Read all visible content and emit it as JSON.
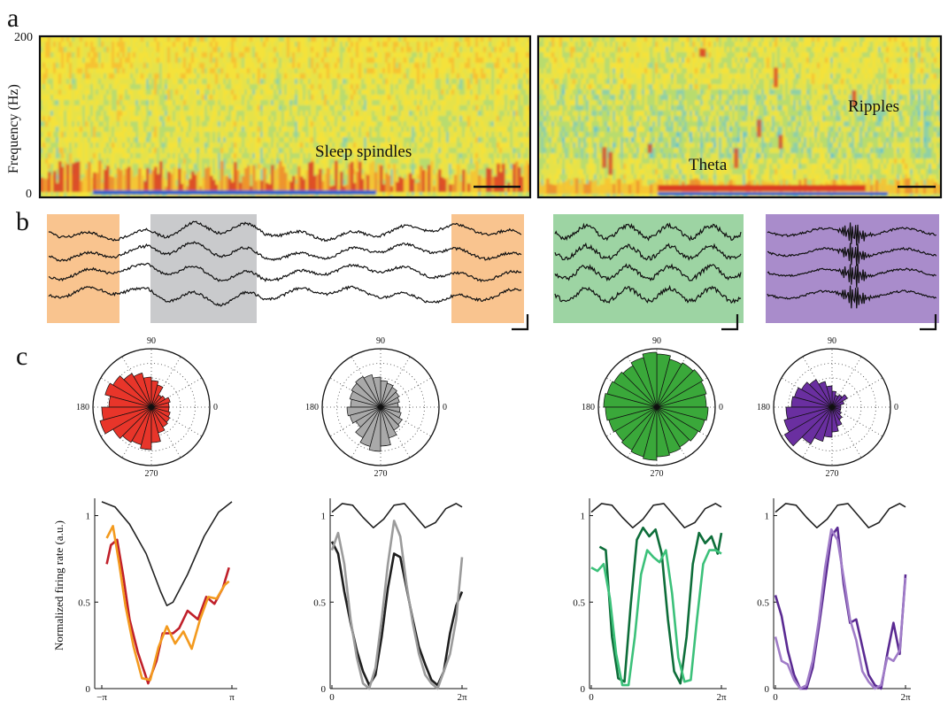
{
  "panel_letters": {
    "a": "a",
    "b": "b",
    "c": "c"
  },
  "spectrogram": {
    "ylabel": "Frequency (Hz)",
    "ytick_top": "200",
    "ytick_bottom": "0",
    "label_spindles": "Sleep spindles",
    "label_theta": "Theta",
    "label_ripples": "Ripples"
  },
  "polar": {
    "labels": {
      "top": "90",
      "left": "180",
      "right": "0",
      "bottom": "270"
    },
    "colors": [
      "#e8352a",
      "#a9a9a9",
      "#3aa83a",
      "#6a2fa0"
    ]
  },
  "trace_colors": {
    "spindle": "#f9c48f",
    "gray": "#c9cacc",
    "theta": "#9dd4a3",
    "ripple": "#a98ccb"
  },
  "chart_data": [
    {
      "type": "line",
      "ylabel": "Normalized firing rate (a.u.)",
      "xticks": [
        "−π",
        "π"
      ],
      "yticks": [
        "0",
        "0.5",
        "1"
      ],
      "ylim": [
        0,
        1.1
      ],
      "series": [
        {
          "color": "#222222",
          "x": [
            -3.14,
            -2.5,
            -1.8,
            -1.0,
            -0.3,
            0,
            0.3,
            1.0,
            1.8,
            2.5,
            3.14
          ],
          "values": [
            1.08,
            1.05,
            0.95,
            0.78,
            0.56,
            0.48,
            0.5,
            0.66,
            0.88,
            1.02,
            1.08
          ]
        },
        {
          "color": "#c0202a",
          "x": [
            -2.9,
            -2.7,
            -2.4,
            -2.1,
            -1.8,
            -1.4,
            -0.9,
            -0.5,
            -0.2,
            0.3,
            0.6,
            1.0,
            1.5,
            1.9,
            2.3,
            2.7,
            3.0
          ],
          "values": [
            0.72,
            0.83,
            0.86,
            0.65,
            0.4,
            0.21,
            0.03,
            0.16,
            0.32,
            0.32,
            0.35,
            0.45,
            0.4,
            0.53,
            0.49,
            0.58,
            0.7
          ]
        },
        {
          "color": "#f39a1e",
          "x": [
            -2.9,
            -2.6,
            -2.3,
            -2.0,
            -1.6,
            -1.2,
            -0.8,
            -0.4,
            0,
            0.4,
            0.8,
            1.2,
            1.6,
            2.0,
            2.4,
            2.8,
            3.0
          ],
          "values": [
            0.87,
            0.94,
            0.72,
            0.48,
            0.24,
            0.06,
            0.05,
            0.24,
            0.36,
            0.26,
            0.33,
            0.23,
            0.4,
            0.53,
            0.52,
            0.6,
            0.62
          ]
        }
      ]
    },
    {
      "type": "line",
      "xticks": [
        "0",
        "2π"
      ],
      "yticks": [
        "0",
        "0.5",
        "1"
      ],
      "ylim": [
        0,
        1.1
      ],
      "series": [
        {
          "color": "#222222",
          "x": [
            0,
            0.5,
            1.0,
            1.5,
            2.0,
            2.5,
            3.0,
            3.5,
            4.0,
            4.5,
            5.0,
            5.5,
            6.0,
            6.28
          ],
          "values": [
            1.02,
            1.07,
            1.06,
            0.99,
            0.93,
            0.98,
            1.06,
            1.07,
            1.0,
            0.93,
            0.96,
            1.04,
            1.07,
            1.05
          ]
        },
        {
          "color": "#1e1e1e",
          "x": [
            0,
            0.3,
            0.6,
            0.9,
            1.2,
            1.5,
            1.8,
            2.1,
            2.4,
            2.7,
            3.0,
            3.3,
            3.6,
            3.9,
            4.2,
            4.5,
            4.8,
            5.1,
            5.4,
            5.7,
            6.0,
            6.28
          ],
          "values": [
            0.85,
            0.78,
            0.56,
            0.38,
            0.22,
            0.1,
            0.02,
            0.08,
            0.3,
            0.58,
            0.78,
            0.76,
            0.58,
            0.4,
            0.24,
            0.14,
            0.05,
            0.02,
            0.1,
            0.32,
            0.48,
            0.56
          ]
        },
        {
          "color": "#9b9b9b",
          "x": [
            0,
            0.3,
            0.6,
            0.9,
            1.2,
            1.5,
            1.8,
            2.1,
            2.4,
            2.7,
            3.0,
            3.3,
            3.6,
            3.9,
            4.2,
            4.5,
            4.8,
            5.1,
            5.4,
            5.7,
            6.0,
            6.28
          ],
          "values": [
            0.8,
            0.9,
            0.72,
            0.4,
            0.18,
            0.03,
            0.0,
            0.12,
            0.4,
            0.72,
            0.97,
            0.88,
            0.6,
            0.38,
            0.2,
            0.08,
            0.03,
            0.0,
            0.1,
            0.2,
            0.4,
            0.76
          ]
        }
      ]
    },
    {
      "type": "line",
      "xticks": [
        "0",
        "2π"
      ],
      "yticks": [
        "0",
        "0.5",
        "1"
      ],
      "ylim": [
        0,
        1.1
      ],
      "series": [
        {
          "color": "#222222",
          "x": [
            0,
            0.5,
            1.0,
            1.5,
            2.0,
            2.5,
            3.0,
            3.5,
            4.0,
            4.5,
            5.0,
            5.5,
            6.0,
            6.28
          ],
          "values": [
            1.02,
            1.07,
            1.06,
            0.99,
            0.93,
            0.98,
            1.06,
            1.07,
            1.0,
            0.93,
            0.96,
            1.04,
            1.07,
            1.05
          ]
        },
        {
          "color": "#0e6e3a",
          "x": [
            0.4,
            0.7,
            1.0,
            1.3,
            1.6,
            1.9,
            2.2,
            2.5,
            2.8,
            3.1,
            3.4,
            3.7,
            4.0,
            4.3,
            4.6,
            4.9,
            5.2,
            5.5,
            5.8,
            6.1,
            6.28
          ],
          "values": [
            0.82,
            0.8,
            0.3,
            0.06,
            0.04,
            0.48,
            0.86,
            0.93,
            0.88,
            0.92,
            0.78,
            0.4,
            0.1,
            0.03,
            0.3,
            0.72,
            0.9,
            0.84,
            0.88,
            0.78,
            0.9
          ]
        },
        {
          "color": "#3cc17a",
          "x": [
            0,
            0.3,
            0.6,
            0.9,
            1.2,
            1.5,
            1.8,
            2.1,
            2.4,
            2.7,
            3.0,
            3.3,
            3.6,
            3.9,
            4.2,
            4.5,
            4.8,
            5.1,
            5.4,
            5.7,
            6.0,
            6.28
          ],
          "values": [
            0.7,
            0.68,
            0.72,
            0.52,
            0.2,
            0.02,
            0.02,
            0.3,
            0.66,
            0.8,
            0.76,
            0.73,
            0.8,
            0.55,
            0.18,
            0.04,
            0.05,
            0.4,
            0.72,
            0.8,
            0.8,
            0.78
          ]
        }
      ]
    },
    {
      "type": "line",
      "xticks": [
        "0",
        "2π"
      ],
      "yticks": [
        "0",
        "0.5",
        "1"
      ],
      "ylim": [
        0,
        1.1
      ],
      "series": [
        {
          "color": "#222222",
          "x": [
            0,
            0.5,
            1.0,
            1.5,
            2.0,
            2.5,
            3.0,
            3.5,
            4.0,
            4.5,
            5.0,
            5.5,
            6.0,
            6.28
          ],
          "values": [
            1.02,
            1.07,
            1.06,
            0.99,
            0.93,
            0.98,
            1.06,
            1.07,
            1.0,
            0.93,
            0.96,
            1.04,
            1.07,
            1.05
          ]
        },
        {
          "color": "#5a2a92",
          "x": [
            0,
            0.3,
            0.6,
            0.9,
            1.2,
            1.5,
            1.8,
            2.1,
            2.4,
            2.7,
            3.0,
            3.3,
            3.6,
            3.9,
            4.2,
            4.5,
            4.8,
            5.1,
            5.4,
            5.7,
            6.0,
            6.28
          ],
          "values": [
            0.54,
            0.42,
            0.22,
            0.08,
            0.0,
            0.0,
            0.12,
            0.36,
            0.62,
            0.88,
            0.93,
            0.6,
            0.38,
            0.4,
            0.24,
            0.08,
            0.02,
            0.0,
            0.2,
            0.38,
            0.2,
            0.66
          ]
        },
        {
          "color": "#a07cc8",
          "x": [
            0,
            0.3,
            0.6,
            0.9,
            1.2,
            1.5,
            1.8,
            2.1,
            2.4,
            2.7,
            3.0,
            3.3,
            3.6,
            3.9,
            4.2,
            4.5,
            4.8,
            5.1,
            5.4,
            5.7,
            6.0,
            6.28
          ],
          "values": [
            0.3,
            0.16,
            0.14,
            0.05,
            0.0,
            0.02,
            0.16,
            0.4,
            0.7,
            0.92,
            0.86,
            0.64,
            0.4,
            0.28,
            0.1,
            0.04,
            0.0,
            0.02,
            0.18,
            0.16,
            0.22,
            0.64
          ]
        }
      ]
    }
  ]
}
